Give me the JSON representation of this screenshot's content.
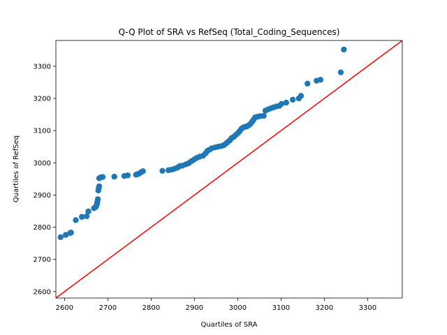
{
  "chart_data": {
    "type": "scatter",
    "title": "Q-Q Plot of SRA vs RefSeq (Total_Coding_Sequences)",
    "xlabel": "Quartiles of SRA",
    "ylabel": "Quartiles of RefSeq",
    "xlim": [
      2580,
      3380
    ],
    "ylim": [
      2580,
      3380
    ],
    "xticks": [
      2600,
      2700,
      2800,
      2900,
      3000,
      3100,
      3200,
      3300
    ],
    "yticks": [
      2600,
      2700,
      2800,
      2900,
      3000,
      3100,
      3200,
      3300
    ],
    "grid": false,
    "reference_line": {
      "x": [
        2580,
        3380
      ],
      "y": [
        2580,
        3380
      ],
      "color": "#ff0000"
    },
    "marker_color": "#1f77b4",
    "points": [
      [
        2591,
        2769
      ],
      [
        2603,
        2776
      ],
      [
        2613,
        2782
      ],
      [
        2615,
        2783
      ],
      [
        2626,
        2822
      ],
      [
        2640,
        2832
      ],
      [
        2651,
        2834
      ],
      [
        2655,
        2849
      ],
      [
        2668,
        2859
      ],
      [
        2672,
        2863
      ],
      [
        2674,
        2868
      ],
      [
        2675,
        2874
      ],
      [
        2676,
        2880
      ],
      [
        2677,
        2887
      ],
      [
        2678,
        2914
      ],
      [
        2679,
        2921
      ],
      [
        2680,
        2927
      ],
      [
        2680,
        2952
      ],
      [
        2684,
        2955
      ],
      [
        2688,
        2956
      ],
      [
        2715,
        2957
      ],
      [
        2738,
        2959
      ],
      [
        2746,
        2961
      ],
      [
        2765,
        2963
      ],
      [
        2769,
        2965
      ],
      [
        2773,
        2967
      ],
      [
        2777,
        2971
      ],
      [
        2781,
        2974
      ],
      [
        2826,
        2975
      ],
      [
        2840,
        2977
      ],
      [
        2848,
        2979
      ],
      [
        2855,
        2982
      ],
      [
        2861,
        2985
      ],
      [
        2866,
        2990
      ],
      [
        2872,
        2991
      ],
      [
        2880,
        2995
      ],
      [
        2887,
        2999
      ],
      [
        2893,
        3005
      ],
      [
        2899,
        3010
      ],
      [
        2905,
        3015
      ],
      [
        2912,
        3019
      ],
      [
        2920,
        3022
      ],
      [
        2926,
        3030
      ],
      [
        2930,
        3037
      ],
      [
        2934,
        3040
      ],
      [
        2940,
        3045
      ],
      [
        2948,
        3048
      ],
      [
        2955,
        3050
      ],
      [
        2962,
        3052
      ],
      [
        2968,
        3055
      ],
      [
        2973,
        3060
      ],
      [
        2977,
        3065
      ],
      [
        2982,
        3070
      ],
      [
        2986,
        3077
      ],
      [
        2991,
        3081
      ],
      [
        2996,
        3087
      ],
      [
        3001,
        3093
      ],
      [
        3005,
        3099
      ],
      [
        3008,
        3105
      ],
      [
        3012,
        3109
      ],
      [
        3017,
        3112
      ],
      [
        3021,
        3113
      ],
      [
        3026,
        3117
      ],
      [
        3030,
        3122
      ],
      [
        3034,
        3129
      ],
      [
        3037,
        3135
      ],
      [
        3040,
        3141
      ],
      [
        3046,
        3143
      ],
      [
        3052,
        3145
      ],
      [
        3060,
        3146
      ],
      [
        3064,
        3162
      ],
      [
        3070,
        3166
      ],
      [
        3076,
        3169
      ],
      [
        3082,
        3172
      ],
      [
        3089,
        3175
      ],
      [
        3096,
        3177
      ],
      [
        3101,
        3183
      ],
      [
        3112,
        3187
      ],
      [
        3127,
        3196
      ],
      [
        3141,
        3200
      ],
      [
        3146,
        3208
      ],
      [
        3161,
        3246
      ],
      [
        3182,
        3255
      ],
      [
        3191,
        3258
      ],
      [
        3238,
        3281
      ],
      [
        3245,
        3352
      ]
    ]
  }
}
